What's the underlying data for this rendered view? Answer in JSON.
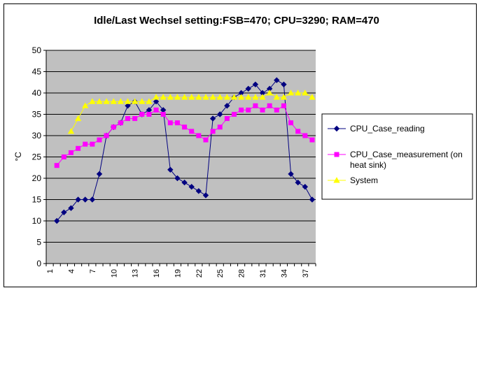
{
  "chart_data": {
    "type": "line",
    "title": "Idle/Last Wechsel setting:FSB=470; CPU=3290; RAM=470",
    "xlabel": "",
    "ylabel": "°C",
    "ylim": [
      0,
      50
    ],
    "yticks": [
      0,
      5,
      10,
      15,
      20,
      25,
      30,
      35,
      40,
      45,
      50
    ],
    "xlim": [
      1,
      38
    ],
    "xtick_labels": [
      "1",
      "4",
      "7",
      "10",
      "13",
      "16",
      "19",
      "22",
      "25",
      "28",
      "31",
      "34",
      "37"
    ],
    "grid": "horizontal",
    "plot_background": "#c0c0c0",
    "legend_position": "right",
    "x": [
      2,
      3,
      4,
      5,
      6,
      7,
      8,
      9,
      10,
      11,
      12,
      13,
      14,
      15,
      16,
      17,
      18,
      19,
      20,
      21,
      22,
      23,
      24,
      25,
      26,
      27,
      28,
      29,
      30,
      31,
      32,
      33,
      34,
      35,
      36,
      37,
      38
    ],
    "series": [
      {
        "name": "CPU_Case_reading",
        "color": "#000080",
        "marker": "diamond",
        "values": [
          10,
          12,
          13,
          15,
          15,
          15,
          21,
          30,
          32,
          33,
          37,
          38,
          35,
          36,
          38,
          36,
          22,
          20,
          19,
          18,
          17,
          16,
          34,
          35,
          37,
          39,
          40,
          41,
          42,
          40,
          41,
          43,
          42,
          21,
          19,
          18,
          15
        ]
      },
      {
        "name": "CPU_Case_measurement (on heat sink)",
        "color": "#ff00ff",
        "marker": "square",
        "values": [
          23,
          25,
          26,
          27,
          28,
          28,
          29,
          30,
          32,
          33,
          34,
          34,
          35,
          35,
          36,
          35,
          33,
          33,
          32,
          31,
          30,
          29,
          31,
          32,
          34,
          35,
          36,
          36,
          37,
          36,
          37,
          36,
          37,
          33,
          31,
          30,
          29
        ]
      },
      {
        "name": "System",
        "color": "#ffff00",
        "marker": "triangle",
        "values": [
          null,
          null,
          31,
          34,
          37,
          38,
          38,
          38,
          38,
          38,
          38,
          38,
          38,
          38,
          39,
          39,
          39,
          39,
          39,
          39,
          39,
          39,
          39,
          39,
          39,
          39,
          39,
          39,
          39,
          39,
          40,
          39,
          39,
          40,
          40,
          40,
          39
        ]
      }
    ]
  }
}
